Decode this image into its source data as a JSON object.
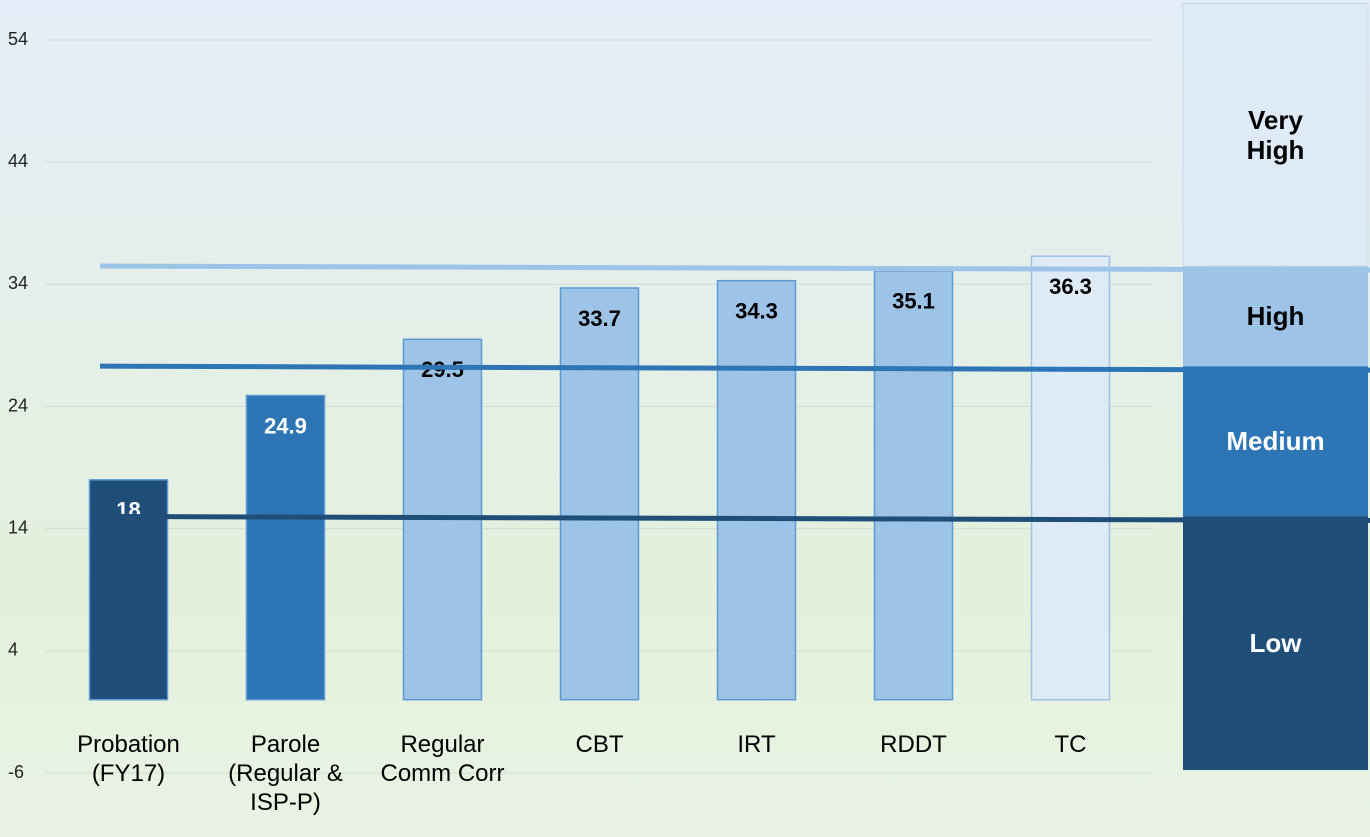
{
  "chart_data": {
    "type": "bar",
    "categories": [
      "Probation\n(FY17)",
      "Parole\n(Regular &\nISP-P)",
      "Regular\nComm Corr",
      "CBT",
      "IRT",
      "RDDT",
      "TC"
    ],
    "values": [
      18,
      24.9,
      29.5,
      33.7,
      34.3,
      35.1,
      36.3
    ],
    "colors": [
      "#1f4e79",
      "#2e75b6",
      "#9dc3e6",
      "#9dc3e6",
      "#9dc3e6",
      "#9dc3e6",
      "#deebf7"
    ],
    "ylim": [
      -6,
      54
    ],
    "yticks": [
      -6,
      4,
      14,
      24,
      34,
      44,
      54
    ],
    "grid": true,
    "bands": [
      {
        "name": "Low",
        "color": "#1f4e79",
        "from": -6,
        "to": 15
      },
      {
        "name": "Medium",
        "color": "#2e75b6",
        "from": 15,
        "to": 27.3
      },
      {
        "name": "High",
        "color": "#9dc3e6",
        "from": 27.3,
        "to": 35.5
      },
      {
        "name": "Very\nHigh",
        "color": "#deebf7",
        "from": 35.5,
        "to": 57
      }
    ]
  }
}
